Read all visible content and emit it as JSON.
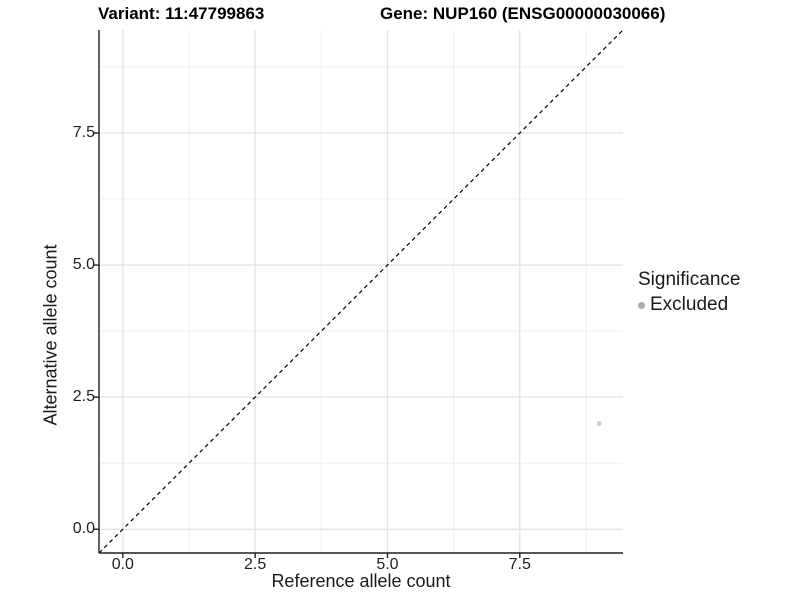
{
  "header": {
    "title_variant": "Variant: 11:47799863",
    "title_gene": "Gene: NUP160 (ENSG00000030066)"
  },
  "chart_data": {
    "type": "scatter",
    "title_variant": "Variant: 11:47799863",
    "title_gene": "Gene: NUP160 (ENSG00000030066)",
    "xlabel": "Reference allele count",
    "ylabel": "Alternative allele count",
    "xlim": [
      -0.45,
      9.45
    ],
    "ylim": [
      -0.45,
      9.45
    ],
    "x_ticks": {
      "values": [
        0,
        2.5,
        5,
        7.5
      ],
      "labels": [
        "0.0",
        "2.5",
        "5.0",
        "7.5"
      ]
    },
    "y_ticks": {
      "values": [
        0,
        2.5,
        5,
        7.5
      ],
      "labels": [
        "0.0",
        "2.5",
        "5.0",
        "7.5"
      ]
    },
    "minor_ticks": [
      1.25,
      3.75,
      6.25,
      8.75
    ],
    "grid": {
      "major_color": "#e3e3e3",
      "minor_color": "#efefef",
      "background": "#ffffff"
    },
    "axis": {
      "line_color": "#1f1f1f",
      "tick_length": 5
    },
    "reference_line": {
      "style": "dashed",
      "slope": 1,
      "intercept": 0,
      "color": "#000000"
    },
    "series": [
      {
        "name": "Excluded",
        "color": "#c9c9c9",
        "points": [
          {
            "x": 9,
            "y": 2
          }
        ],
        "point_radius": 2.4
      }
    ],
    "legend": {
      "title": "Significance",
      "position": "right",
      "entries": [
        {
          "label": "Excluded",
          "color": "#adadad"
        }
      ]
    }
  }
}
